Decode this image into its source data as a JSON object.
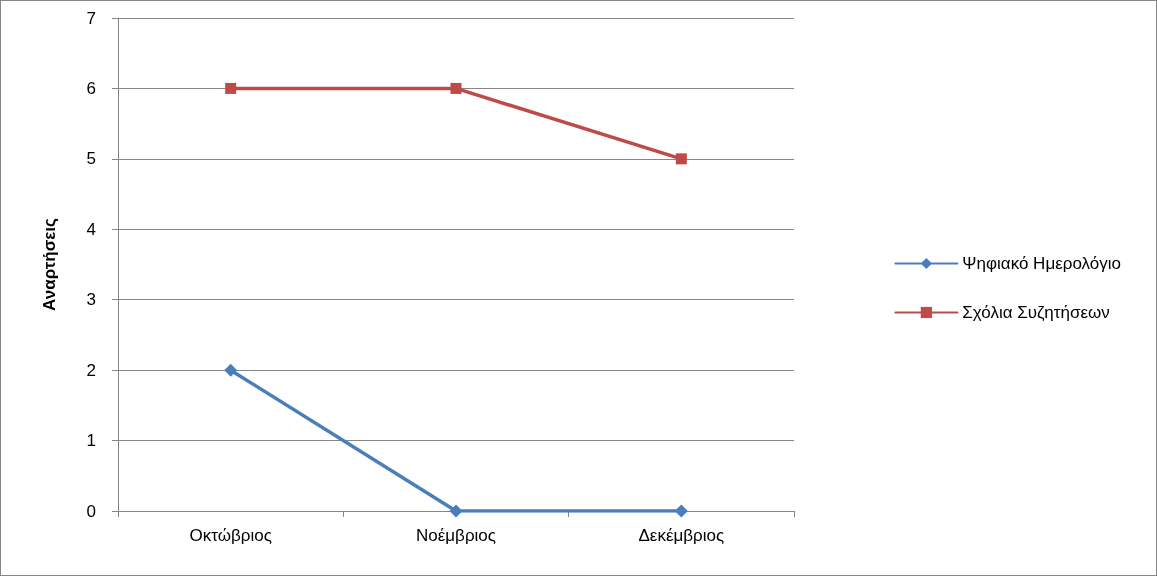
{
  "chart_data": {
    "type": "line",
    "ylabel": "Αναρτήσεις",
    "categories": [
      "Οκτώβριος",
      "Νοέμβριος",
      "Δεκέμβριος"
    ],
    "series": [
      {
        "name": "Ψηφιακό Ημερολόγιο",
        "color": "#4a7ebb",
        "values": [
          2,
          0,
          0
        ],
        "marker": "diamond"
      },
      {
        "name": "Σχόλια Συζητήσεων",
        "color": "#be4b48",
        "values": [
          6,
          6,
          5
        ],
        "marker": "square"
      }
    ],
    "ylim": [
      0,
      7
    ],
    "yticks": [
      0,
      1,
      2,
      3,
      4,
      5,
      6,
      7
    ],
    "grid": "y",
    "legend": "right",
    "line_style": "solid"
  }
}
